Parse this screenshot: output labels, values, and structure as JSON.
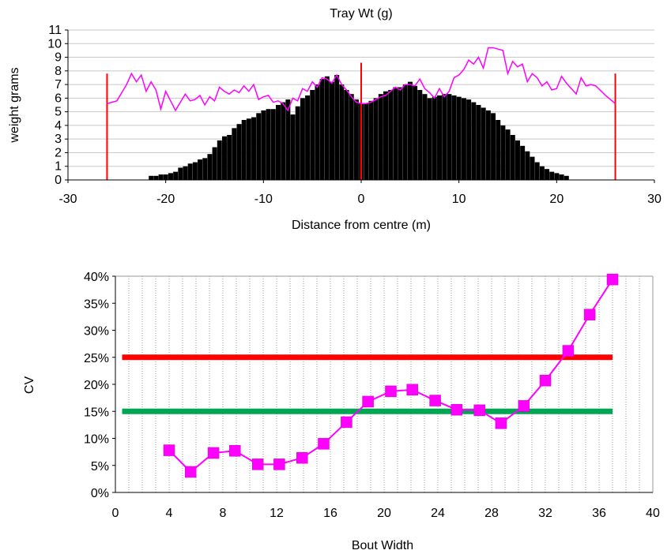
{
  "chart_data": [
    {
      "type": "bar",
      "title": "Tray Wt (g)",
      "xlabel": "Distance from centre (m)",
      "ylabel": "weight grams",
      "xlim": [
        -30,
        30
      ],
      "ylim": [
        0,
        11
      ],
      "x_ticks": [
        "-30",
        "-20",
        "-10",
        "0",
        "10",
        "20",
        "30"
      ],
      "y_ticks": [
        "0",
        "1",
        "2",
        "3",
        "4",
        "5",
        "6",
        "7",
        "8",
        "9",
        "10",
        "11"
      ],
      "grid": "horizontal",
      "bar_width": 0.5,
      "bar_color": "#000000",
      "bars": {
        "x": [
          -21.5,
          -21,
          -20.5,
          -20,
          -19.5,
          -19,
          -18.5,
          -18,
          -17.5,
          -17,
          -16.5,
          -16,
          -15.5,
          -15,
          -14.5,
          -14,
          -13.5,
          -13,
          -12.5,
          -12,
          -11.5,
          -11,
          -10.5,
          -10,
          -9.5,
          -9,
          -8.5,
          -8,
          -7.5,
          -7,
          -6.5,
          -6,
          -5.5,
          -5,
          -4.5,
          -4,
          -3.5,
          -3,
          -2.5,
          -2,
          -1.5,
          -1,
          -0.5,
          0,
          0.5,
          1,
          1.5,
          2,
          2.5,
          3,
          3.5,
          4,
          4.5,
          5,
          5.5,
          6,
          6.5,
          7,
          7.5,
          8,
          8.5,
          9,
          9.5,
          10,
          10.5,
          11,
          11.5,
          12,
          12.5,
          13,
          13.5,
          14,
          14.5,
          15,
          15.5,
          16,
          16.5,
          17,
          17.5,
          18,
          18.5,
          19,
          19.5,
          20,
          20.5,
          21
        ],
        "values": [
          0.3,
          0.3,
          0.4,
          0.4,
          0.5,
          0.6,
          0.9,
          1.0,
          1.2,
          1.3,
          1.5,
          1.6,
          1.9,
          2.4,
          2.9,
          3.2,
          3.3,
          3.8,
          4.1,
          4.4,
          4.5,
          4.6,
          4.9,
          5.1,
          5.2,
          5.2,
          5.5,
          5.7,
          5.9,
          4.8,
          5.4,
          6.0,
          6.2,
          6.6,
          7.0,
          7.4,
          7.6,
          7.2,
          7.7,
          7.0,
          6.6,
          6.3,
          5.9,
          5.6,
          5.6,
          5.8,
          6.0,
          6.3,
          6.5,
          6.6,
          6.8,
          6.8,
          7.0,
          7.2,
          6.9,
          6.6,
          6.3,
          6.0,
          6.1,
          6.2,
          6.3,
          6.3,
          6.2,
          6.1,
          6.0,
          5.9,
          5.7,
          5.5,
          5.3,
          5.1,
          4.9,
          4.4,
          4.0,
          3.7,
          3.3,
          2.9,
          2.5,
          2.1,
          1.7,
          1.3,
          1.0,
          0.8,
          0.6,
          0.5,
          0.4,
          0.3
        ]
      },
      "overlay_line": {
        "color": "#ff00ff",
        "x": [
          -26,
          -25,
          -24.5,
          -24,
          -23.5,
          -23,
          -22.5,
          -22,
          -21.5,
          -21,
          -20.5,
          -20,
          -19.5,
          -19,
          -18.5,
          -18,
          -17.5,
          -17,
          -16.5,
          -16,
          -15.5,
          -15,
          -14.5,
          -14,
          -13.5,
          -13,
          -12.5,
          -12,
          -11.5,
          -11,
          -10.5,
          -10,
          -9.5,
          -9,
          -8.5,
          -8,
          -7.5,
          -7,
          -6.5,
          -6,
          -5.5,
          -5,
          -4.5,
          -4,
          -3.5,
          -3,
          -2.5,
          -2,
          -1.5,
          -1,
          -0.5,
          0,
          0.5,
          1,
          1.5,
          2,
          2.5,
          3,
          3.5,
          4,
          4.5,
          5,
          5.5,
          6,
          6.5,
          7,
          7.5,
          8,
          8.5,
          9,
          9.5,
          10,
          10.5,
          11,
          11.5,
          12,
          12.5,
          13,
          13.5,
          14,
          14.5,
          15,
          15.5,
          16,
          16.5,
          17,
          17.5,
          18,
          18.5,
          19,
          19.5,
          20,
          20.5,
          21,
          21.5,
          22,
          22.5,
          23,
          23.5,
          24,
          25,
          26
        ],
        "y": [
          5.6,
          5.8,
          6.4,
          7.0,
          7.8,
          7.2,
          7.7,
          6.5,
          7.2,
          6.6,
          5.2,
          6.5,
          5.8,
          5.1,
          5.7,
          6.3,
          5.8,
          5.9,
          6.2,
          5.5,
          6.1,
          5.8,
          6.8,
          6.5,
          6.3,
          6.6,
          6.4,
          6.9,
          6.5,
          7.0,
          5.9,
          6.1,
          6.2,
          5.7,
          5.8,
          5.6,
          5.1,
          6.0,
          5.8,
          6.7,
          6.5,
          7.2,
          6.8,
          7.5,
          7.4,
          7.1,
          7.7,
          7.0,
          6.6,
          6.1,
          5.7,
          5.6,
          5.6,
          5.7,
          5.9,
          6.1,
          6.2,
          6.5,
          6.8,
          6.6,
          7.0,
          7.0,
          6.9,
          7.4,
          6.7,
          6.4,
          6.0,
          6.7,
          6.1,
          6.5,
          7.5,
          7.7,
          8.1,
          8.8,
          8.5,
          9.0,
          8.2,
          9.7,
          9.7,
          9.6,
          9.5,
          7.8,
          8.7,
          8.3,
          8.5,
          7.2,
          7.8,
          7.5,
          6.9,
          7.2,
          6.6,
          6.7,
          7.6,
          7.1,
          6.7,
          6.3,
          7.5,
          6.9,
          7.0,
          6.9,
          6.2,
          5.6
        ]
      },
      "vertical_markers": {
        "color": "#ff0000",
        "x": [
          -26,
          0,
          26
        ],
        "heights": [
          7.8,
          8.6,
          7.8
        ]
      }
    },
    {
      "type": "line",
      "title": "",
      "xlabel": "Bout Width",
      "ylabel": "CV",
      "xlim": [
        0,
        40
      ],
      "ylim": [
        0,
        40
      ],
      "x_ticks": [
        "0",
        "4",
        "8",
        "12",
        "16",
        "20",
        "24",
        "28",
        "32",
        "36",
        "40"
      ],
      "y_ticks": [
        "0%",
        "5%",
        "10%",
        "15%",
        "20%",
        "25%",
        "30%",
        "35%",
        "40%"
      ],
      "grid": "vertical dotted",
      "series": [
        {
          "color": "#ff00ff",
          "marker": "square",
          "x": [
            4.0,
            5.6,
            7.3,
            8.9,
            10.6,
            12.2,
            13.9,
            15.5,
            17.2,
            18.8,
            20.5,
            22.1,
            23.8,
            25.4,
            27.1,
            28.7,
            30.4,
            32.0,
            33.7,
            35.3,
            37.0
          ],
          "y": [
            7.8,
            3.8,
            7.3,
            7.7,
            5.2,
            5.2,
            6.4,
            9.0,
            13.0,
            16.8,
            18.7,
            19.0,
            17.0,
            15.3,
            15.2,
            12.8,
            16.0,
            20.7,
            26.2,
            32.9,
            39.4
          ]
        }
      ],
      "reference_lines": [
        {
          "y": 25,
          "color": "#ff0000",
          "x": [
            0.5,
            37
          ]
        },
        {
          "y": 15,
          "color": "#00a651",
          "x": [
            0.5,
            37
          ]
        }
      ]
    }
  ]
}
